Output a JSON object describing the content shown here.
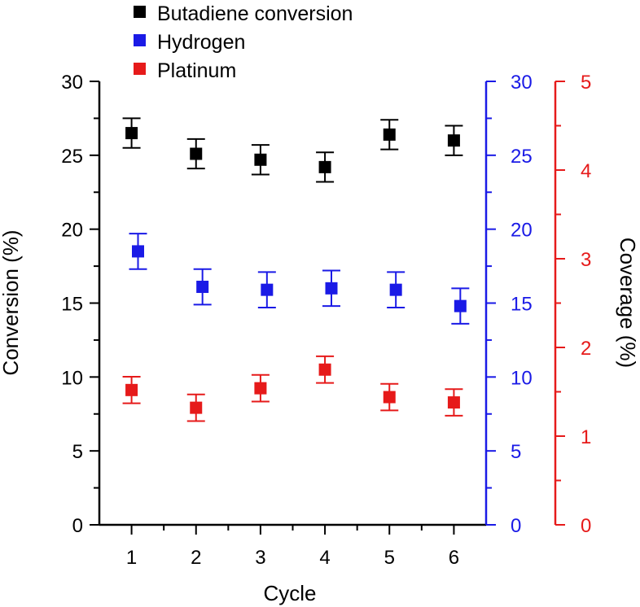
{
  "chart_data": {
    "type": "scatter",
    "title": "",
    "xlabel": "Cycle",
    "ylabel": "Conversion (%)",
    "ylabel_right": "Coverage (%)",
    "x": [
      1,
      2,
      3,
      4,
      5,
      6
    ],
    "xlim": [
      0.5,
      6.5
    ],
    "x_ticks": [
      "1",
      "2",
      "3",
      "4",
      "5",
      "6"
    ],
    "axes": {
      "left": {
        "range": [
          0,
          30
        ],
        "ticks": [
          "0",
          "5",
          "10",
          "15",
          "20",
          "25",
          "30"
        ],
        "color": "#000000"
      },
      "right1": {
        "range": [
          0,
          30
        ],
        "ticks": [
          "0",
          "5",
          "10",
          "15",
          "20",
          "25",
          "30"
        ],
        "color": "#1a1ae6"
      },
      "right2": {
        "range": [
          0,
          5
        ],
        "ticks": [
          "0",
          "1",
          "2",
          "3",
          "4",
          "5"
        ],
        "color": "#e61a1a"
      }
    },
    "series": [
      {
        "name": "Butadiene conversion",
        "axis": "left",
        "color": "#000000",
        "values": [
          26.5,
          25.1,
          24.7,
          24.2,
          26.4,
          26.0
        ],
        "errors": [
          1.0,
          1.0,
          1.0,
          1.0,
          1.0,
          1.0
        ]
      },
      {
        "name": "Hydrogen",
        "axis": "right1",
        "color": "#1a1ae6",
        "values": [
          18.5,
          16.1,
          15.9,
          16.0,
          15.9,
          14.8
        ],
        "errors": [
          1.2,
          1.2,
          1.2,
          1.2,
          1.2,
          1.2
        ]
      },
      {
        "name": "Platinum",
        "axis": "right2",
        "color": "#e61a1a",
        "values": [
          1.52,
          1.32,
          1.54,
          1.75,
          1.44,
          1.38
        ],
        "errors": [
          0.15,
          0.15,
          0.15,
          0.15,
          0.15,
          0.15
        ]
      }
    ],
    "legend": "top-left"
  }
}
